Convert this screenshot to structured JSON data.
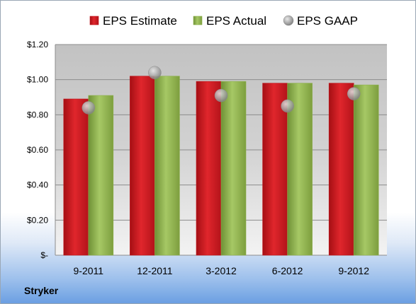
{
  "chart_data": {
    "type": "bar",
    "categories": [
      "9-2011",
      "12-2011",
      "3-2012",
      "6-2012",
      "9-2012"
    ],
    "series": [
      {
        "name": "EPS Estimate",
        "values": [
          0.89,
          1.02,
          0.99,
          0.98,
          0.98
        ],
        "color": "#c0151b"
      },
      {
        "name": "EPS Actual",
        "values": [
          0.91,
          1.02,
          0.99,
          0.98,
          0.97
        ],
        "color": "#8cb04a"
      },
      {
        "name": "EPS GAAP",
        "values": [
          0.84,
          1.04,
          0.91,
          0.85,
          0.92
        ],
        "color": "#a9a9a9",
        "mark": "scatter"
      }
    ],
    "y_ticks": [
      {
        "value": 0,
        "label": "$-"
      },
      {
        "value": 0.2,
        "label": "$0.20"
      },
      {
        "value": 0.4,
        "label": "$0.40"
      },
      {
        "value": 0.6,
        "label": "$0.60"
      },
      {
        "value": 0.8,
        "label": "$0.80"
      },
      {
        "value": 1.0,
        "label": "$1.00"
      },
      {
        "value": 1.2,
        "label": "$1.20"
      }
    ],
    "ylim": [
      0,
      1.2
    ],
    "grid": true,
    "legend_position": "top"
  },
  "company": "Stryker"
}
